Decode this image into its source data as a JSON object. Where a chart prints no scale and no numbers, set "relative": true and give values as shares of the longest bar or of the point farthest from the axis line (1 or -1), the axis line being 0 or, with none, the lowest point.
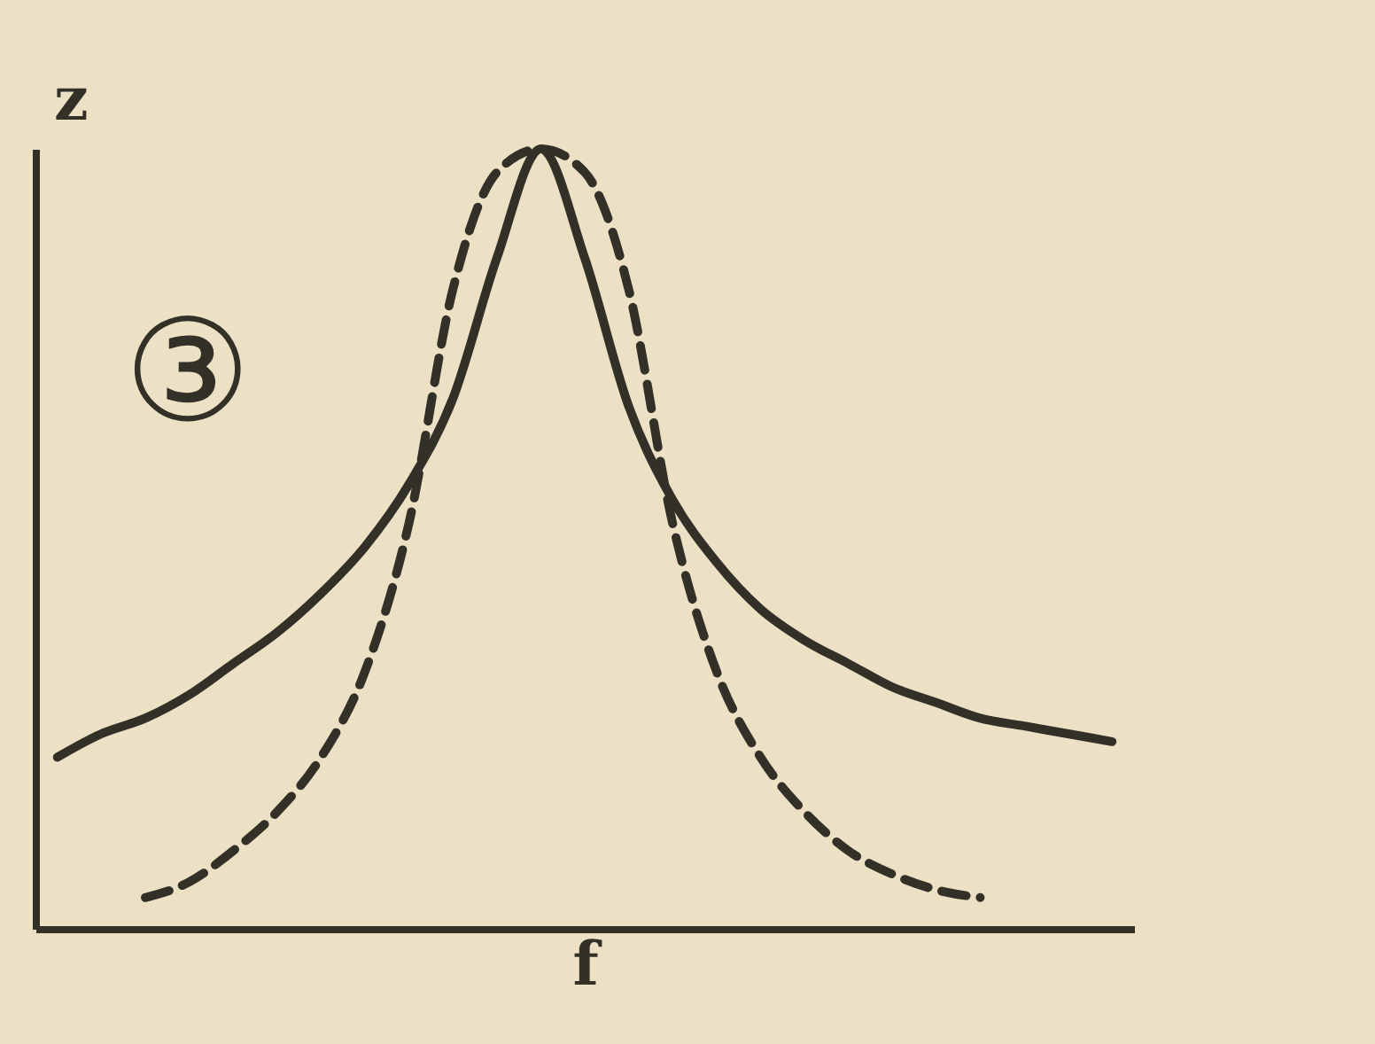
{
  "chart_data": {
    "type": "line",
    "relative": true,
    "xlabel": "f",
    "ylabel": "z",
    "annotations": [
      "③"
    ],
    "categories": [
      null,
      null,
      null,
      null,
      null,
      null,
      null,
      null,
      null,
      null,
      null,
      null,
      null,
      null,
      null,
      null,
      null,
      null,
      null,
      null,
      null,
      null,
      null,
      null,
      null
    ],
    "series": [
      {
        "color": "#333028",
        "line_style": "solid",
        "values": [
          0.22,
          0.25,
          0.27,
          0.3,
          0.34,
          0.38,
          0.43,
          0.49,
          0.57,
          0.68,
          0.86,
          1,
          0.86,
          0.67,
          0.55,
          0.47,
          0.41,
          0.37,
          0.34,
          0.31,
          0.29,
          0.27,
          0.26,
          0.25,
          0.24
        ]
      },
      {
        "color": "#333028",
        "line_style": "dashed",
        "values": [
          null,
          null,
          0.04,
          0.06,
          0.1,
          0.15,
          0.22,
          0.33,
          0.52,
          0.82,
          0.97,
          1,
          0.97,
          0.82,
          0.52,
          0.33,
          0.22,
          0.15,
          0.1,
          0.07,
          0.05,
          0.04,
          null,
          null,
          null
        ]
      }
    ],
    "legend": false,
    "grid": false,
    "marker": "none",
    "tick_labels": false
  }
}
